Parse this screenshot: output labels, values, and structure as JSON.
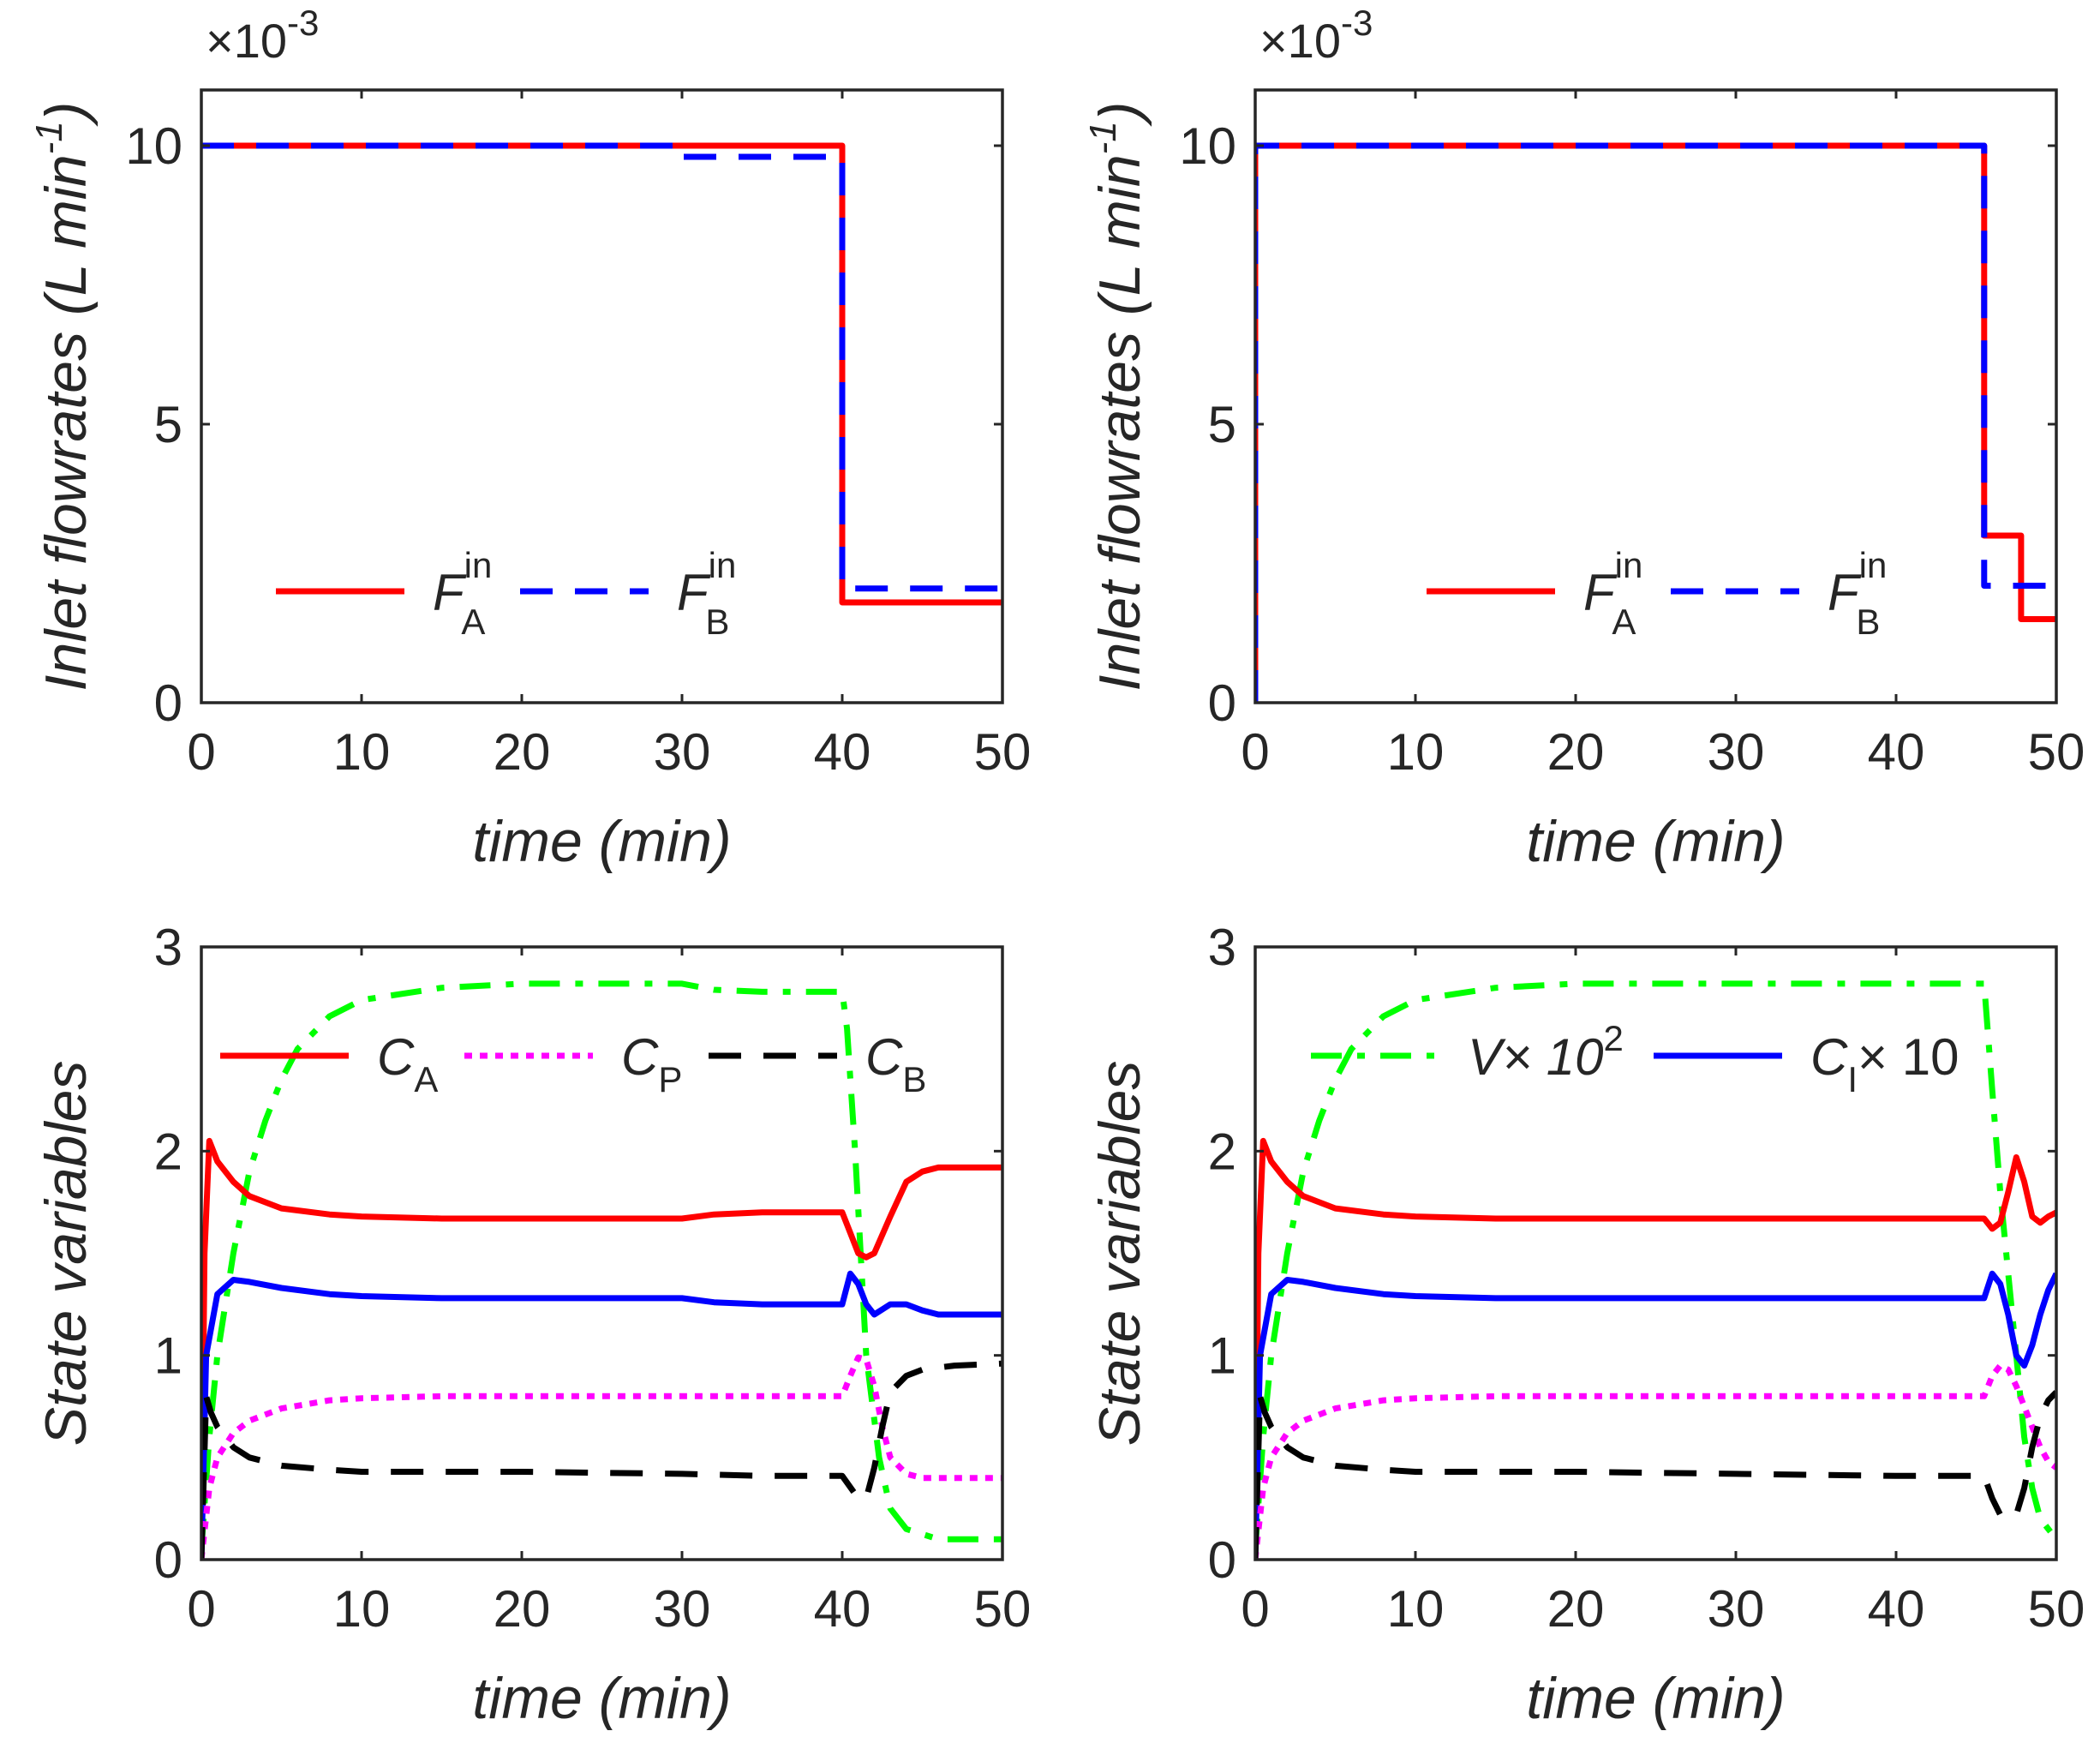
{
  "chart_data": [
    {
      "id": "top-left",
      "type": "line",
      "xlabel": "time (min)",
      "ylabel": "Inlet flowrates (L min",
      "ylabel_sup": "-1",
      "ylabel_close": ")",
      "multiplier": "×10",
      "multiplier_exp": "-3",
      "xlim": [
        0,
        50
      ],
      "ylim": [
        0,
        11
      ],
      "xticks": [
        "0",
        "10",
        "20",
        "30",
        "40",
        "50"
      ],
      "yticks": [
        "0",
        "5",
        "10"
      ],
      "legend_position": "lower-left",
      "series": [
        {
          "name": "F_A^in",
          "label_main": "F",
          "label_sup": "in",
          "label_sub": "A",
          "color": "#ff0000",
          "dash": "solid",
          "x": [
            0,
            40,
            40,
            50
          ],
          "y": [
            10,
            10,
            1.8,
            1.8
          ]
        },
        {
          "name": "F_B^in",
          "label_main": "F",
          "label_sup": "in",
          "label_sub": "B",
          "color": "#0000ff",
          "dash": "dashed",
          "x": [
            0,
            30,
            30,
            40,
            40,
            50
          ],
          "y": [
            10,
            10,
            9.8,
            9.8,
            2.05,
            2.05
          ]
        }
      ]
    },
    {
      "id": "top-right",
      "type": "line",
      "xlabel": "time (min)",
      "ylabel": "Inlet flowrates (L min",
      "ylabel_sup": "-1",
      "ylabel_close": ")",
      "multiplier": "×10",
      "multiplier_exp": "-3",
      "xlim": [
        0,
        50
      ],
      "ylim": [
        0,
        11
      ],
      "xticks": [
        "0",
        "10",
        "20",
        "30",
        "40",
        "50"
      ],
      "yticks": [
        "0",
        "5",
        "10"
      ],
      "legend_position": "lower-left",
      "series": [
        {
          "name": "F_A^in",
          "label_main": "F",
          "label_sup": "in",
          "label_sub": "A",
          "color": "#ff0000",
          "dash": "solid",
          "x": [
            0,
            0,
            45.5,
            45.5,
            47.8,
            47.8,
            50
          ],
          "y": [
            0,
            10,
            10,
            3,
            3,
            1.5,
            1.5
          ]
        },
        {
          "name": "F_B^in",
          "label_main": "F",
          "label_sup": "in",
          "label_sub": "B",
          "color": "#0000ff",
          "dash": "dashed",
          "x": [
            0,
            0,
            45.5,
            45.5,
            50
          ],
          "y": [
            0,
            10,
            10,
            2.1,
            2.1
          ]
        }
      ]
    },
    {
      "id": "bottom-left",
      "type": "line",
      "xlabel": "time (min)",
      "ylabel": "State variables",
      "xlim": [
        0,
        50
      ],
      "ylim": [
        0,
        3
      ],
      "xticks": [
        "0",
        "10",
        "20",
        "30",
        "40",
        "50"
      ],
      "yticks": [
        "0",
        "1",
        "2",
        "3"
      ],
      "legend_position": "top",
      "series": [
        {
          "name": "V×10^2",
          "color": "#00ff00",
          "dash": "dashdot",
          "in_legend": false,
          "x": [
            0,
            0.5,
            1,
            2,
            3,
            4,
            5,
            6,
            8,
            10,
            15,
            20,
            25,
            30,
            32,
            35,
            40,
            40.3,
            40.8,
            41.5,
            42.3,
            43,
            44,
            46,
            50
          ],
          "y": [
            0.05,
            0.6,
            1.0,
            1.5,
            1.9,
            2.15,
            2.35,
            2.5,
            2.66,
            2.74,
            2.8,
            2.82,
            2.82,
            2.82,
            2.79,
            2.78,
            2.78,
            2.6,
            2.0,
            1.0,
            0.5,
            0.25,
            0.15,
            0.1,
            0.1
          ]
        },
        {
          "name": "C_A",
          "label_main": "C",
          "label_sub": "A",
          "color": "#ff0000",
          "dash": "solid",
          "x": [
            0,
            0.2,
            0.5,
            1,
            2,
            3,
            5,
            8,
            10,
            15,
            20,
            30,
            32,
            35,
            40,
            40.5,
            41,
            41.5,
            42,
            43,
            44,
            45,
            46,
            50
          ],
          "y": [
            0,
            1.5,
            2.05,
            1.95,
            1.85,
            1.78,
            1.72,
            1.69,
            1.68,
            1.67,
            1.67,
            1.67,
            1.69,
            1.7,
            1.7,
            1.6,
            1.5,
            1.48,
            1.5,
            1.68,
            1.85,
            1.9,
            1.92,
            1.92
          ]
        },
        {
          "name": "C_I×10",
          "color": "#0000ff",
          "dash": "solid",
          "in_legend": false,
          "x": [
            0,
            0.3,
            1,
            2,
            3,
            5,
            8,
            10,
            15,
            20,
            30,
            32,
            35,
            40,
            40.5,
            41,
            41.5,
            42,
            43,
            44,
            45,
            46,
            50
          ],
          "y": [
            0,
            1.0,
            1.3,
            1.37,
            1.36,
            1.33,
            1.3,
            1.29,
            1.28,
            1.28,
            1.28,
            1.26,
            1.25,
            1.25,
            1.4,
            1.35,
            1.25,
            1.2,
            1.25,
            1.25,
            1.22,
            1.2,
            1.2
          ]
        },
        {
          "name": "C_P",
          "label_main": "C",
          "label_sub": "P",
          "color": "#ff00ff",
          "dash": "dotted",
          "x": [
            0,
            0.5,
            1,
            2,
            3,
            5,
            8,
            10,
            15,
            20,
            30,
            35,
            40,
            40.5,
            41,
            41.5,
            42,
            42.5,
            43,
            44,
            45,
            50
          ],
          "y": [
            0,
            0.35,
            0.5,
            0.62,
            0.68,
            0.74,
            0.78,
            0.79,
            0.8,
            0.8,
            0.8,
            0.8,
            0.8,
            0.9,
            0.99,
            0.98,
            0.85,
            0.65,
            0.5,
            0.42,
            0.4,
            0.4
          ]
        },
        {
          "name": "C_B",
          "label_main": "C",
          "label_sub": "B",
          "color": "#000000",
          "dash": "dashed",
          "x": [
            0,
            0.3,
            0.6,
            1,
            2,
            3,
            5,
            8,
            10,
            20,
            30,
            35,
            40,
            41,
            41.5,
            42,
            42.5,
            43,
            44,
            45,
            47,
            50
          ],
          "y": [
            0,
            0.8,
            0.72,
            0.65,
            0.55,
            0.5,
            0.46,
            0.44,
            0.43,
            0.43,
            0.42,
            0.41,
            0.41,
            0.3,
            0.3,
            0.45,
            0.65,
            0.82,
            0.9,
            0.93,
            0.95,
            0.96
          ]
        }
      ]
    },
    {
      "id": "bottom-right",
      "type": "line",
      "xlabel": "time (min)",
      "ylabel": "State variables",
      "xlim": [
        0,
        50
      ],
      "ylim": [
        0,
        3
      ],
      "xticks": [
        "0",
        "10",
        "20",
        "30",
        "40",
        "50"
      ],
      "yticks": [
        "0",
        "1",
        "2",
        "3"
      ],
      "legend_position": "top",
      "series": [
        {
          "name": "V×10^2",
          "label_main": "V× 10",
          "label_sup": "2",
          "color": "#00ff00",
          "dash": "dashdot",
          "x": [
            0,
            0.5,
            1,
            2,
            3,
            4,
            5,
            6,
            8,
            10,
            15,
            20,
            30,
            40,
            45.5,
            46,
            46.5,
            47,
            47.5,
            48,
            48.5,
            49,
            49.5,
            50
          ],
          "y": [
            0.05,
            0.6,
            1.0,
            1.5,
            1.9,
            2.15,
            2.35,
            2.5,
            2.66,
            2.74,
            2.8,
            2.82,
            2.82,
            2.82,
            2.82,
            2.3,
            1.8,
            1.4,
            1.0,
            0.6,
            0.35,
            0.2,
            0.15,
            0.1
          ]
        },
        {
          "name": "C_A",
          "color": "#ff0000",
          "dash": "solid",
          "in_legend": false,
          "x": [
            0,
            0.2,
            0.5,
            1,
            2,
            3,
            5,
            8,
            10,
            15,
            20,
            30,
            40,
            45.5,
            46,
            46.5,
            47,
            47.5,
            48,
            48.5,
            49,
            49.5,
            50
          ],
          "y": [
            0,
            1.5,
            2.05,
            1.95,
            1.85,
            1.78,
            1.72,
            1.69,
            1.68,
            1.67,
            1.67,
            1.67,
            1.67,
            1.67,
            1.62,
            1.65,
            1.8,
            1.97,
            1.85,
            1.68,
            1.65,
            1.68,
            1.7
          ]
        },
        {
          "name": "C_I×10",
          "label_main": "C",
          "label_sub": "I",
          "label_tail": "× 10",
          "color": "#0000ff",
          "dash": "solid",
          "x": [
            0,
            0.3,
            1,
            2,
            3,
            5,
            8,
            10,
            15,
            20,
            30,
            40,
            45.5,
            46,
            46.5,
            47,
            47.5,
            48,
            48.5,
            49,
            49.5,
            50
          ],
          "y": [
            0,
            1.0,
            1.3,
            1.37,
            1.36,
            1.33,
            1.3,
            1.29,
            1.28,
            1.28,
            1.28,
            1.28,
            1.28,
            1.4,
            1.35,
            1.2,
            1.0,
            0.95,
            1.05,
            1.2,
            1.32,
            1.4
          ]
        },
        {
          "name": "C_P",
          "color": "#ff00ff",
          "dash": "dotted",
          "in_legend": false,
          "x": [
            0,
            0.5,
            1,
            2,
            3,
            5,
            8,
            10,
            15,
            20,
            30,
            40,
            45.5,
            46,
            46.5,
            47,
            47.5,
            48,
            48.5,
            49,
            49.5,
            50
          ],
          "y": [
            0,
            0.35,
            0.5,
            0.62,
            0.68,
            0.74,
            0.78,
            0.79,
            0.8,
            0.8,
            0.8,
            0.8,
            0.8,
            0.9,
            0.95,
            0.93,
            0.85,
            0.75,
            0.65,
            0.55,
            0.48,
            0.45
          ]
        },
        {
          "name": "C_B",
          "color": "#000000",
          "dash": "dashed",
          "in_legend": false,
          "x": [
            0,
            0.3,
            0.6,
            1,
            2,
            3,
            5,
            8,
            10,
            20,
            30,
            40,
            45.5,
            46,
            46.5,
            47,
            47.5,
            48,
            48.5,
            49,
            49.5,
            50
          ],
          "y": [
            0,
            0.8,
            0.72,
            0.65,
            0.55,
            0.5,
            0.46,
            0.44,
            0.43,
            0.43,
            0.42,
            0.41,
            0.41,
            0.3,
            0.22,
            0.2,
            0.22,
            0.35,
            0.55,
            0.7,
            0.78,
            0.82
          ]
        }
      ]
    }
  ]
}
